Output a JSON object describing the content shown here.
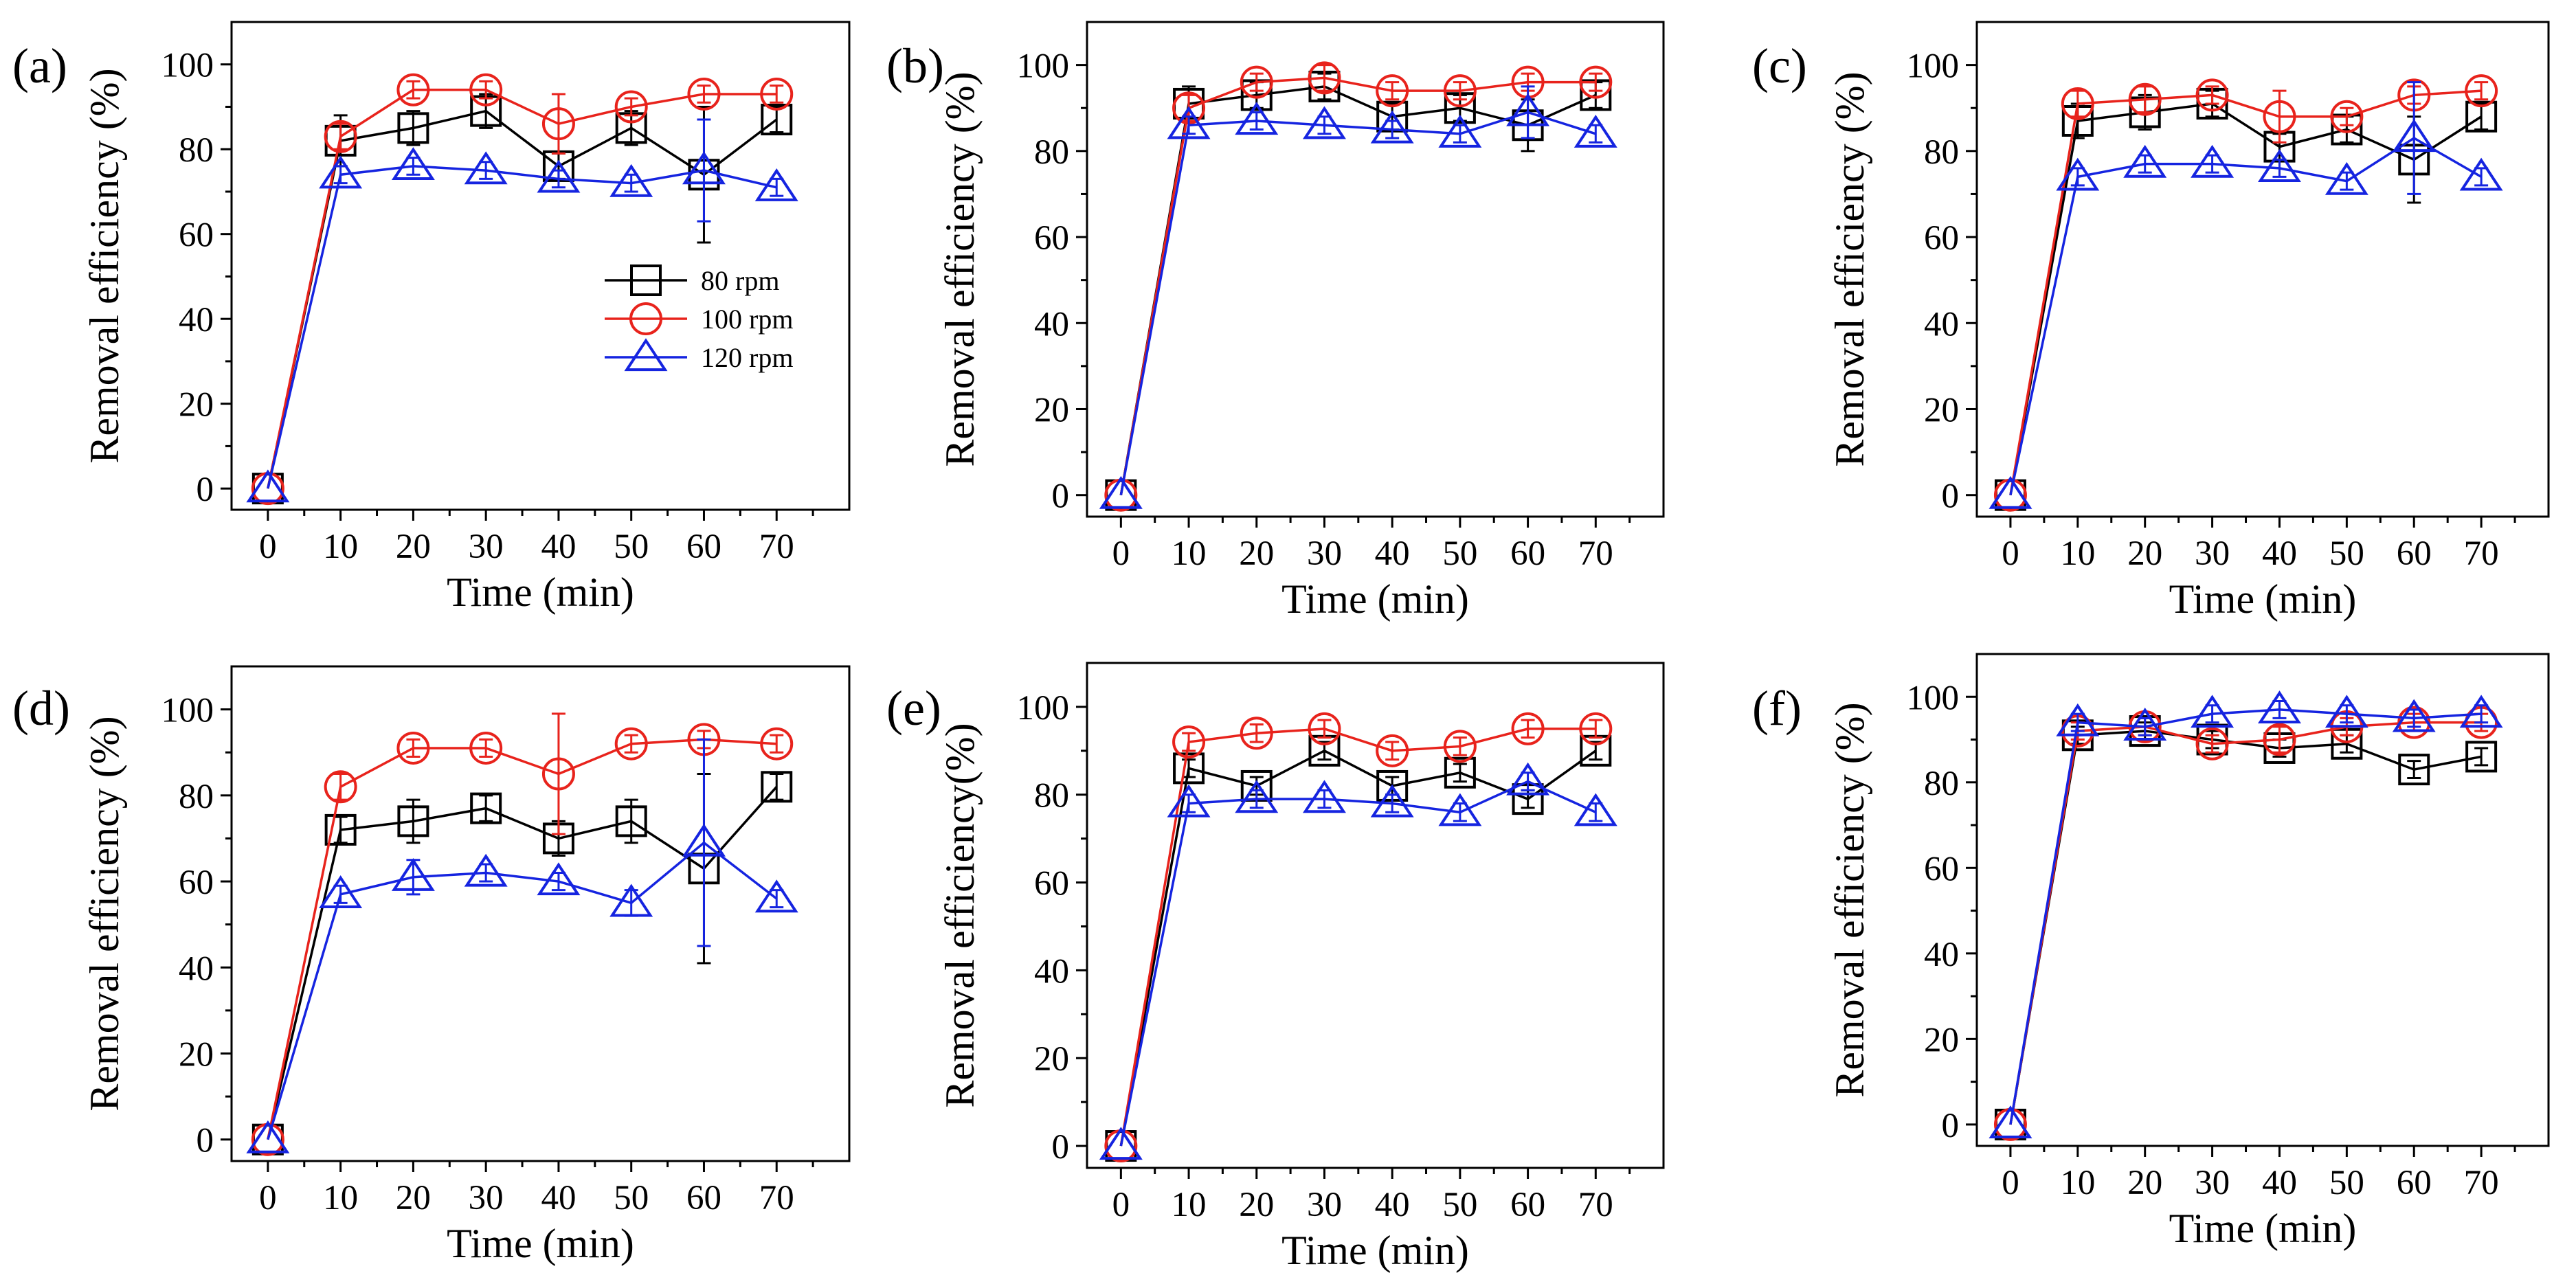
{
  "figure": {
    "legend_labels": [
      "80 rpm",
      "100 rpm",
      "120 rpm"
    ]
  },
  "series_colors": {
    "80 rpm": "#000000",
    "100 rpm": "#e8231c",
    "120 rpm": "#1524e0"
  },
  "chart_data": [
    {
      "panel": "(a)",
      "type": "line",
      "xlabel": "Time (min)",
      "ylabel": "Removal efficiency (%)",
      "x": [
        0,
        10,
        20,
        30,
        40,
        50,
        60,
        70
      ],
      "xlim": [
        -5,
        80
      ],
      "ylim": [
        -5,
        110
      ],
      "yticks": [
        0,
        20,
        40,
        60,
        80,
        100
      ],
      "xticks": [
        0,
        10,
        20,
        30,
        40,
        50,
        60,
        70
      ],
      "legend": "center-right",
      "series": [
        {
          "name": "80 rpm",
          "marker": "square",
          "values": [
            0,
            82,
            85,
            89,
            76,
            85,
            74,
            87
          ],
          "errors": [
            0,
            6,
            4,
            4,
            3,
            4,
            16,
            3
          ]
        },
        {
          "name": "100 rpm",
          "marker": "circle",
          "values": [
            0,
            83,
            94,
            94,
            86,
            90,
            93,
            93
          ],
          "errors": [
            0,
            3,
            2,
            2,
            7,
            2,
            2,
            2
          ]
        },
        {
          "name": "120 rpm",
          "marker": "triangle",
          "values": [
            0,
            74,
            76,
            75,
            73,
            72,
            75,
            71
          ],
          "errors": [
            0,
            2,
            2,
            2,
            2,
            2,
            12,
            2
          ]
        }
      ]
    },
    {
      "panel": "(b)",
      "type": "line",
      "xlabel": "Time (min)",
      "ylabel": "Removal efficiency (%)",
      "x": [
        0,
        10,
        20,
        30,
        40,
        50,
        60,
        70
      ],
      "xlim": [
        -5,
        80
      ],
      "ylim": [
        -5,
        110
      ],
      "yticks": [
        0,
        20,
        40,
        60,
        80,
        100
      ],
      "xticks": [
        0,
        10,
        20,
        30,
        40,
        50,
        60,
        70
      ],
      "series": [
        {
          "name": "80 rpm",
          "marker": "square",
          "values": [
            0,
            91,
            93,
            95,
            88,
            90,
            86,
            93
          ],
          "errors": [
            0,
            4,
            3,
            3,
            3,
            3,
            6,
            3
          ]
        },
        {
          "name": "100 rpm",
          "marker": "circle",
          "values": [
            0,
            90,
            96,
            97,
            94,
            94,
            96,
            96
          ],
          "errors": [
            0,
            3,
            2,
            3,
            2,
            2,
            2,
            2
          ]
        },
        {
          "name": "120 rpm",
          "marker": "triangle",
          "values": [
            0,
            86,
            87,
            86,
            85,
            84,
            89,
            84
          ],
          "errors": [
            0,
            2,
            2,
            2,
            2,
            2,
            6,
            2
          ]
        }
      ]
    },
    {
      "panel": "(c)",
      "type": "line",
      "xlabel": "Time (min)",
      "ylabel": "Removal efficiency (%)",
      "x": [
        0,
        10,
        20,
        30,
        40,
        50,
        60,
        70
      ],
      "xlim": [
        -5,
        80
      ],
      "ylim": [
        -5,
        110
      ],
      "yticks": [
        0,
        20,
        40,
        60,
        80,
        100
      ],
      "xticks": [
        0,
        10,
        20,
        30,
        40,
        50,
        60,
        70
      ],
      "series": [
        {
          "name": "80 rpm",
          "marker": "square",
          "values": [
            0,
            87,
            89,
            91,
            81,
            85,
            78,
            88
          ],
          "errors": [
            0,
            4,
            4,
            3,
            3,
            3,
            10,
            3
          ]
        },
        {
          "name": "100 rpm",
          "marker": "circle",
          "values": [
            0,
            91,
            92,
            93,
            88,
            88,
            93,
            94
          ],
          "errors": [
            0,
            3,
            3,
            2,
            6,
            2,
            2,
            2
          ]
        },
        {
          "name": "120 rpm",
          "marker": "triangle",
          "values": [
            0,
            74,
            77,
            77,
            76,
            73,
            83,
            74
          ],
          "errors": [
            0,
            2,
            2,
            2,
            2,
            2,
            13,
            2
          ]
        }
      ]
    },
    {
      "panel": "(d)",
      "type": "line",
      "xlabel": "Time (min)",
      "ylabel": "Removal efficiency (%)",
      "x": [
        0,
        10,
        20,
        30,
        40,
        50,
        60,
        70
      ],
      "xlim": [
        -5,
        80
      ],
      "ylim": [
        -5,
        110
      ],
      "yticks": [
        0,
        20,
        40,
        60,
        80,
        100
      ],
      "xticks": [
        0,
        10,
        20,
        30,
        40,
        50,
        60,
        70
      ],
      "series": [
        {
          "name": "80 rpm",
          "marker": "square",
          "values": [
            0,
            72,
            74,
            77,
            70,
            74,
            63,
            82
          ],
          "errors": [
            0,
            3,
            5,
            3,
            4,
            5,
            22,
            3
          ]
        },
        {
          "name": "100 rpm",
          "marker": "circle",
          "values": [
            0,
            82,
            91,
            91,
            85,
            92,
            93,
            92
          ],
          "errors": [
            0,
            3,
            2,
            2,
            14,
            2,
            2,
            2
          ]
        },
        {
          "name": "120 rpm",
          "marker": "triangle",
          "values": [
            0,
            57,
            61,
            62,
            60,
            55,
            69,
            56
          ],
          "errors": [
            0,
            2,
            4,
            2,
            2,
            3,
            24,
            2
          ]
        }
      ]
    },
    {
      "panel": "(e)",
      "type": "line",
      "xlabel": "Time (min)",
      "ylabel": "Removal efficiency(%)",
      "x": [
        0,
        10,
        20,
        30,
        40,
        50,
        60,
        70
      ],
      "xlim": [
        -5,
        80
      ],
      "ylim": [
        -5,
        110
      ],
      "yticks": [
        0,
        20,
        40,
        60,
        80,
        100
      ],
      "xticks": [
        0,
        10,
        20,
        30,
        40,
        50,
        60,
        70
      ],
      "series": [
        {
          "name": "80 rpm",
          "marker": "square",
          "values": [
            0,
            86,
            82,
            90,
            82,
            85,
            79,
            90
          ],
          "errors": [
            0,
            2,
            2,
            2,
            2,
            2,
            2,
            2
          ]
        },
        {
          "name": "100 rpm",
          "marker": "circle",
          "values": [
            0,
            92,
            94,
            95,
            90,
            91,
            95,
            95
          ],
          "errors": [
            0,
            2,
            2,
            2,
            2,
            2,
            2,
            2
          ]
        },
        {
          "name": "120 rpm",
          "marker": "triangle",
          "values": [
            0,
            78,
            79,
            79,
            78,
            76,
            83,
            76
          ],
          "errors": [
            0,
            2,
            2,
            2,
            2,
            2,
            2,
            2
          ]
        }
      ]
    },
    {
      "panel": "(f)",
      "type": "line",
      "xlabel": "Time (min)",
      "ylabel": "Removal efficiency (%)",
      "x": [
        0,
        10,
        20,
        30,
        40,
        50,
        60,
        70
      ],
      "xlim": [
        -5,
        80
      ],
      "ylim": [
        -5,
        110
      ],
      "yticks": [
        0,
        20,
        40,
        60,
        80,
        100
      ],
      "xticks": [
        0,
        10,
        20,
        30,
        40,
        50,
        60,
        70
      ],
      "series": [
        {
          "name": "80 rpm",
          "marker": "square",
          "values": [
            0,
            91,
            92,
            90,
            88,
            89,
            83,
            86
          ],
          "errors": [
            0,
            2,
            2,
            2,
            2,
            2,
            2,
            2
          ]
        },
        {
          "name": "100 rpm",
          "marker": "circle",
          "values": [
            0,
            92,
            93,
            89,
            90,
            93,
            94,
            94
          ],
          "errors": [
            0,
            2,
            2,
            2,
            3,
            2,
            2,
            2
          ]
        },
        {
          "name": "120 rpm",
          "marker": "triangle",
          "values": [
            0,
            94,
            93,
            96,
            97,
            96,
            95,
            96
          ],
          "errors": [
            0,
            2,
            2,
            2,
            2,
            2,
            2,
            2
          ]
        }
      ]
    }
  ]
}
